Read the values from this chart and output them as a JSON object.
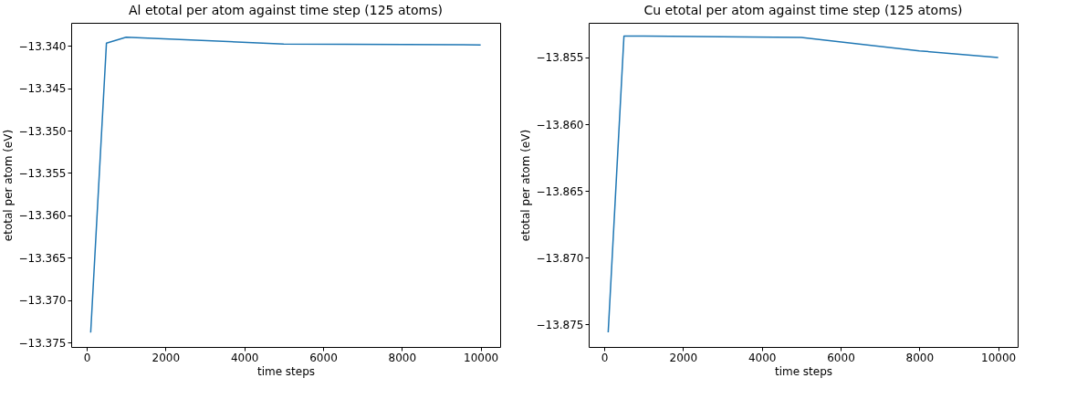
{
  "chart_data": [
    {
      "type": "line",
      "title": "Al etotal per atom against time step (125 atoms)",
      "xlabel": "time steps",
      "ylabel": "etotal per atom (eV)",
      "x": [
        100,
        500,
        1000,
        5000,
        10000
      ],
      "series": [
        {
          "color": "#1f77b4",
          "values": [
            -13.3738,
            -13.3397,
            -13.339,
            -13.3398,
            -13.3399
          ]
        }
      ],
      "xlim": [
        -395,
        10495
      ],
      "xticks": [
        0,
        2000,
        4000,
        6000,
        8000,
        10000
      ],
      "ylim": [
        -13.3755,
        -13.3373
      ],
      "yticks": [
        {
          "value": -13.375,
          "label": "−13.375"
        },
        {
          "value": -13.37,
          "label": "−13.370"
        },
        {
          "value": -13.365,
          "label": "−13.365"
        },
        {
          "value": -13.36,
          "label": "−13.360"
        },
        {
          "value": -13.355,
          "label": "−13.355"
        },
        {
          "value": -13.35,
          "label": "−13.350"
        },
        {
          "value": -13.345,
          "label": "−13.345"
        },
        {
          "value": -13.34,
          "label": "−13.340"
        }
      ],
      "grid": false
    },
    {
      "type": "line",
      "title": "Cu etotal per atom against time step (125 atoms)",
      "xlabel": "time steps",
      "ylabel": "etotal per atom (eV)",
      "x": [
        100,
        500,
        1000,
        5000,
        8000,
        10000
      ],
      "series": [
        {
          "color": "#1f77b4",
          "values": [
            -13.8756,
            -13.8534,
            -13.8534,
            -13.8535,
            -13.8545,
            -13.855
          ]
        }
      ],
      "xlim": [
        -395,
        10495
      ],
      "xticks": [
        0,
        2000,
        4000,
        6000,
        8000,
        10000
      ],
      "ylim": [
        -13.8767,
        -13.8524
      ],
      "yticks": [
        {
          "value": -13.875,
          "label": "−13.875"
        },
        {
          "value": -13.87,
          "label": "−13.870"
        },
        {
          "value": -13.865,
          "label": "−13.865"
        },
        {
          "value": -13.86,
          "label": "−13.860"
        },
        {
          "value": -13.855,
          "label": "−13.855"
        }
      ],
      "grid": false
    }
  ]
}
